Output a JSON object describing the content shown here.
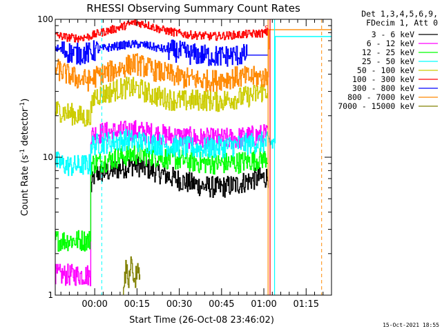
{
  "chart_data": {
    "type": "line",
    "title": "RHESSI Observing Summary Count Rates",
    "xlabel": "Start Time (26-Oct-08 23:46:02)",
    "ylabel": "Count Rate (s",
    "ylabel_sup": "-1",
    "ylabel_tail": " detector",
    "ylabel_tail_sup": "-1",
    "ylabel_close": ")",
    "yscale": "log",
    "ylim": [
      1,
      100
    ],
    "xlim_minutes": [
      0,
      98
    ],
    "y_ticks": [
      {
        "value": 1,
        "label": "1"
      },
      {
        "value": 10,
        "label": "10"
      },
      {
        "value": 100,
        "label": "100"
      }
    ],
    "x_ticks": [
      {
        "minute": 14,
        "label": "00:00"
      },
      {
        "minute": 29,
        "label": "00:15"
      },
      {
        "minute": 44,
        "label": "00:30"
      },
      {
        "minute": 59,
        "label": "00:45"
      },
      {
        "minute": 74,
        "label": "01:00"
      },
      {
        "minute": 89,
        "label": "01:15"
      }
    ],
    "header_lines": [
      "Det 1,3,4,5,6,9,",
      "FDecim 1, Att 0"
    ],
    "annotation": "S",
    "footer_date": "15-Oct-2021 18:55",
    "dashed_markers_minutes": [
      16.5,
      94.5
    ],
    "solid_markers_minutes": [
      75.5,
      76.2,
      77.8
    ],
    "series": [
      {
        "name": "3 - 6 keV",
        "color": "#000000",
        "start_min": 12.5,
        "end_min": 75.5,
        "x": [
          12.5,
          14,
          18,
          23,
          28,
          34,
          40,
          46,
          52,
          58,
          64,
          70,
          75.5
        ],
        "values": [
          5.8,
          7.6,
          7.8,
          8.3,
          8.8,
          8.1,
          7.3,
          6.6,
          6.2,
          6.0,
          6.3,
          6.9,
          7.2
        ]
      },
      {
        "name": "6 - 12 keV",
        "color": "#ff00ff",
        "start_min": 0,
        "end_min": 75.5,
        "x": [
          0,
          12.4,
          12.5,
          14,
          18,
          23,
          28,
          34,
          40,
          46,
          52,
          58,
          64,
          70,
          75.5
        ],
        "values": [
          1.4,
          1.4,
          14.2,
          14.8,
          15.1,
          15.3,
          15.6,
          14.9,
          14.3,
          13.9,
          13.6,
          13.5,
          13.7,
          14.2,
          14.6
        ]
      },
      {
        "name": "12 - 25 keV",
        "color": "#00ff00",
        "start_min": 0,
        "end_min": 75.5,
        "x": [
          0,
          12.4,
          12.5,
          14,
          18,
          23,
          28,
          34,
          40,
          46,
          52,
          58,
          64,
          70,
          75.5
        ],
        "values": [
          2.5,
          2.5,
          8.8,
          9.1,
          9.4,
          10.1,
          10.6,
          10.3,
          9.8,
          9.5,
          9.1,
          9.0,
          9.1,
          9.5,
          10.0
        ]
      },
      {
        "name": "25 - 50 keV",
        "color": "#00ffff",
        "start_min": 0,
        "end_min": 98,
        "x": [
          0,
          3,
          6,
          10,
          12.4,
          12.5,
          16,
          20,
          25,
          30,
          36,
          42,
          48,
          54,
          60,
          66,
          72,
          75.5,
          77.8,
          78,
          98
        ],
        "values": [
          9.3,
          8.8,
          8.6,
          8.8,
          8.8,
          12.2,
          12.6,
          12.9,
          13.4,
          13.0,
          12.4,
          12.0,
          11.7,
          11.6,
          11.9,
          12.3,
          12.8,
          12.7,
          12.7,
          75,
          75
        ]
      },
      {
        "name": "50 - 100 keV",
        "color": "#cccc00",
        "start_min": 0,
        "end_min": 75.5,
        "x": [
          0,
          4,
          8,
          12,
          14,
          18,
          22,
          26,
          30,
          34,
          38,
          42,
          46,
          50,
          54,
          58,
          62,
          66,
          70,
          75.5
        ],
        "values": [
          22,
          21,
          20,
          19,
          28,
          29,
          31,
          32,
          31,
          28.5,
          27,
          26,
          25.5,
          26,
          26,
          25.5,
          26.5,
          27,
          28,
          31
        ]
      },
      {
        "name": "100 - 300 keV",
        "color": "#ff0000",
        "start_min": 0,
        "end_min": 75.5,
        "x": [
          0,
          4,
          8,
          12,
          16,
          20,
          24,
          28,
          32,
          36,
          40,
          44,
          48,
          52,
          56,
          60,
          64,
          68,
          72,
          75.5
        ],
        "values": [
          77,
          74,
          73,
          75,
          80,
          84,
          89,
          95,
          92,
          86,
          82,
          79,
          77,
          76,
          75,
          76,
          77,
          78,
          79,
          80
        ]
      },
      {
        "name": "300 - 800 keV",
        "color": "#0000ff",
        "start_min": 0,
        "end_min": 75.5,
        "x": [
          0,
          4,
          8,
          12,
          16,
          20,
          24,
          28,
          32,
          36,
          40,
          44,
          48,
          52,
          56,
          60,
          64,
          68,
          72,
          75.5
        ],
        "values": [
          62,
          58,
          56,
          57,
          61,
          63,
          65,
          66,
          65,
          62,
          60,
          58,
          56,
          55,
          54,
          54,
          55,
          55,
          55,
          55
        ]
      },
      {
        "name": "800 - 7000 keV",
        "color": "#ff8800",
        "start_min": 0,
        "end_min": 98,
        "x": [
          0,
          4,
          8,
          12,
          16,
          20,
          24,
          28,
          32,
          36,
          40,
          44,
          48,
          52,
          56,
          60,
          64,
          68,
          72,
          75.5,
          75.7,
          98
        ],
        "values": [
          44,
          40,
          37,
          36,
          40,
          42,
          45,
          48,
          45,
          42,
          40,
          38,
          37,
          36,
          36,
          37,
          38,
          38,
          38,
          38,
          84,
          84
        ]
      },
      {
        "name": "7000 - 15000 keV",
        "color": "#808000",
        "start_min": 24,
        "end_min": 30,
        "x": [
          24,
          25,
          26,
          27,
          28,
          29,
          30
        ],
        "values": [
          1.2,
          1.5,
          1.3,
          1.8,
          1.2,
          1.6,
          1.2
        ]
      }
    ]
  }
}
